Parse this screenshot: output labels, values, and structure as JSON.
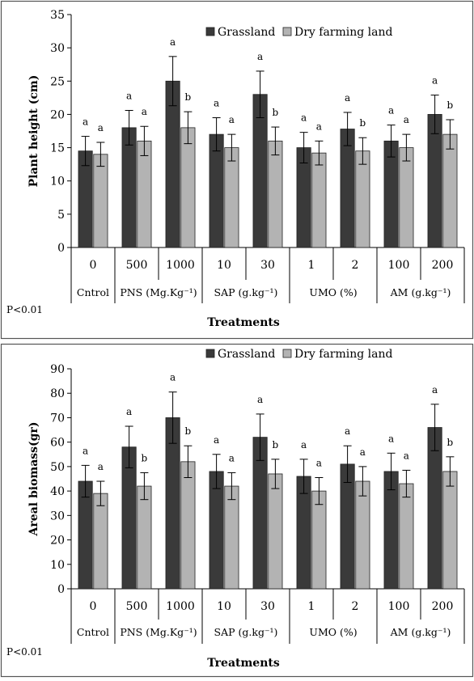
{
  "chart_data": [
    {
      "type": "bar",
      "title": "",
      "xlabel": "Treatments",
      "ylabel": "Plant height (cm)",
      "ylim": [
        0,
        35
      ],
      "yticks": [
        0,
        5,
        10,
        15,
        20,
        25,
        30,
        35
      ],
      "categories": [
        "0",
        "500",
        "1000",
        "10",
        "30",
        "1",
        "2",
        "100",
        "200"
      ],
      "groups": [
        {
          "label": "Cntrol",
          "span": 1
        },
        {
          "label": "PNS (Mg.Kg⁻¹)",
          "span": 2
        },
        {
          "label": "SAP (g.kg⁻¹)",
          "span": 2
        },
        {
          "label": "UMO (%)",
          "span": 2
        },
        {
          "label": "AM (g.kg⁻¹)",
          "span": 2
        }
      ],
      "series": [
        {
          "name": "Grassland",
          "color": "#3a3a3a",
          "values": [
            14.5,
            18,
            25,
            17,
            23,
            15,
            17.8,
            16,
            20
          ],
          "errors": [
            2.2,
            2.6,
            3.7,
            2.5,
            3.5,
            2.3,
            2.5,
            2.4,
            2.9
          ],
          "labels": [
            "a",
            "a",
            "a",
            "a",
            "a",
            "a",
            "a",
            "a",
            "a"
          ]
        },
        {
          "name": "Dry farming land",
          "color": "#b3b3b3",
          "values": [
            14,
            16,
            18,
            15,
            16,
            14.2,
            14.5,
            15,
            17
          ],
          "errors": [
            1.8,
            2.2,
            2.4,
            2.0,
            2.1,
            1.8,
            2.0,
            2.0,
            2.2
          ],
          "labels": [
            "a",
            "a",
            "b",
            "a",
            "b",
            "a",
            "b",
            "a",
            "b"
          ]
        }
      ],
      "note": "P<0.01",
      "legend_position": "top-right",
      "grid": false
    },
    {
      "type": "bar",
      "title": "",
      "xlabel": "Treatments",
      "ylabel": "Areal biomass(gr)",
      "ylim": [
        0,
        90
      ],
      "yticks": [
        0,
        10,
        20,
        30,
        40,
        50,
        60,
        70,
        80,
        90
      ],
      "categories": [
        "0",
        "500",
        "1000",
        "10",
        "30",
        "1",
        "2",
        "100",
        "200"
      ],
      "groups": [
        {
          "label": "Cntrol",
          "span": 1
        },
        {
          "label": "PNS (Mg.Kg⁻¹)",
          "span": 2
        },
        {
          "label": "SAP (g.kg⁻¹)",
          "span": 2
        },
        {
          "label": "UMO (%)",
          "span": 2
        },
        {
          "label": "AM (g.kg⁻¹)",
          "span": 2
        }
      ],
      "series": [
        {
          "name": "Grassland",
          "color": "#3a3a3a",
          "values": [
            44,
            58,
            70,
            48,
            62,
            46,
            51,
            48,
            66
          ],
          "errors": [
            6.5,
            8.5,
            10.5,
            7,
            9.5,
            7,
            7.5,
            7.5,
            9.5
          ],
          "labels": [
            "a",
            "a",
            "a",
            "a",
            "a",
            "a",
            "a",
            "a",
            "a"
          ]
        },
        {
          "name": "Dry farming land",
          "color": "#b3b3b3",
          "values": [
            39,
            42,
            52,
            42,
            47,
            40,
            44,
            43,
            48
          ],
          "errors": [
            5,
            5.5,
            6.5,
            5.5,
            6,
            5.5,
            6,
            5.5,
            6
          ],
          "labels": [
            "a",
            "b",
            "b",
            "a",
            "b",
            "a",
            "a",
            "a",
            "b"
          ]
        }
      ],
      "note": "P<0.01",
      "legend_position": "top-right",
      "grid": false
    }
  ]
}
